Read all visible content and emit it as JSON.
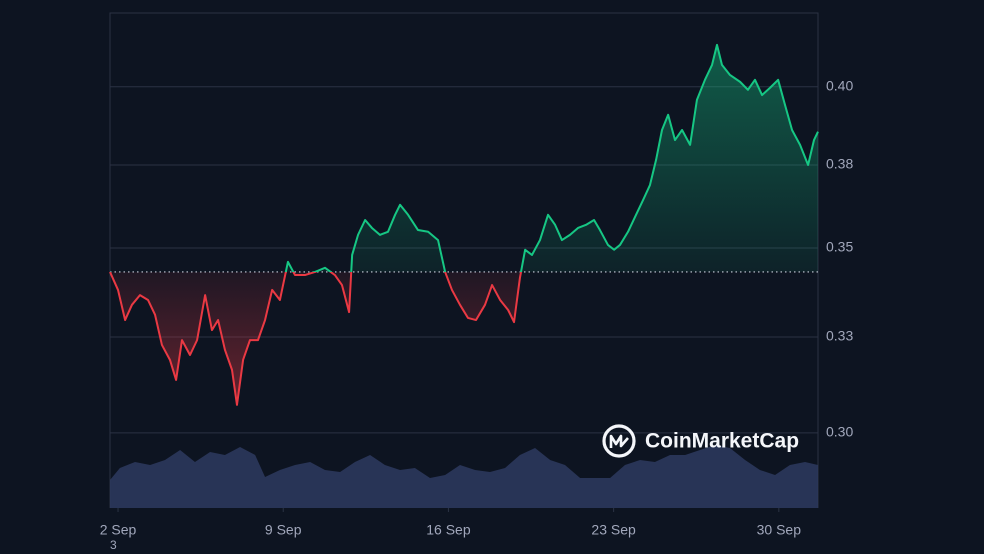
{
  "chart_data": {
    "type": "baseline-line",
    "x": [
      1.66,
      2.0,
      2.3,
      2.59,
      2.93,
      3.27,
      3.57,
      3.86,
      4.2,
      4.46,
      4.71,
      5.05,
      5.35,
      5.69,
      5.98,
      6.24,
      6.53,
      6.83,
      7.04,
      7.3,
      7.59,
      7.93,
      8.23,
      8.53,
      8.86,
      9.2,
      9.5,
      9.92,
      10.35,
      10.77,
      11.19,
      11.49,
      11.79,
      11.92,
      12.17,
      12.47,
      12.76,
      13.1,
      13.44,
      13.74,
      13.95,
      14.29,
      14.71,
      15.14,
      15.56,
      15.86,
      16.15,
      16.49,
      16.83,
      17.17,
      17.55,
      17.85,
      18.19,
      18.53,
      18.78,
      19.03,
      19.25,
      19.54,
      19.88,
      20.22,
      20.52,
      20.81,
      21.15,
      21.49,
      21.83,
      22.17,
      22.42,
      22.76,
      23.02,
      23.27,
      23.61,
      23.95,
      24.25,
      24.54,
      24.8,
      25.05,
      25.31,
      25.6,
      25.9,
      26.24,
      26.53,
      26.87,
      27.17,
      27.38,
      27.59,
      27.93,
      28.36,
      28.69,
      28.99,
      29.29,
      29.63,
      29.97,
      30.26,
      30.56,
      30.9,
      31.24,
      31.49,
      31.66
    ],
    "values": [
      0.3465,
      0.3413,
      0.3326,
      0.337,
      0.3398,
      0.3384,
      0.3341,
      0.3254,
      0.3211,
      0.3153,
      0.3268,
      0.3225,
      0.3268,
      0.3398,
      0.3297,
      0.3326,
      0.324,
      0.3182,
      0.3081,
      0.3211,
      0.3268,
      0.3268,
      0.3326,
      0.3413,
      0.3384,
      0.3494,
      0.3456,
      0.3456,
      0.3465,
      0.3477,
      0.3456,
      0.3427,
      0.3349,
      0.3514,
      0.3572,
      0.3615,
      0.3592,
      0.3572,
      0.3581,
      0.363,
      0.3659,
      0.363,
      0.3586,
      0.3581,
      0.3557,
      0.3465,
      0.3413,
      0.337,
      0.3332,
      0.3326,
      0.337,
      0.3427,
      0.3384,
      0.3355,
      0.332,
      0.3448,
      0.3529,
      0.3514,
      0.3557,
      0.363,
      0.3601,
      0.3557,
      0.3572,
      0.3592,
      0.3601,
      0.3615,
      0.3586,
      0.3543,
      0.3529,
      0.3543,
      0.3581,
      0.363,
      0.3673,
      0.3716,
      0.3789,
      0.3875,
      0.3919,
      0.3846,
      0.3875,
      0.3832,
      0.3962,
      0.402,
      0.4063,
      0.4121,
      0.4063,
      0.4034,
      0.4014,
      0.3991,
      0.402,
      0.3976,
      0.3997,
      0.402,
      0.3948,
      0.3875,
      0.3832,
      0.3774,
      0.3846,
      0.387
    ],
    "baseline": 0.3465,
    "color_up": "#16c784",
    "color_down": "#ea3943",
    "xlim": [
      1.66,
      31.66
    ],
    "xticks": [
      {
        "value": 2,
        "label": "2 Sep"
      },
      {
        "value": 9,
        "label": "9 Sep"
      },
      {
        "value": 16,
        "label": "16 Sep"
      },
      {
        "value": 23,
        "label": "23 Sep"
      },
      {
        "value": 30,
        "label": "30 Sep"
      }
    ],
    "ylim": [
      0.2783,
      0.4213
    ],
    "yticks": [
      {
        "value": 0.4,
        "label": "0.40"
      },
      {
        "value": 0.3774,
        "label": "0.38"
      },
      {
        "value": 0.3534,
        "label": "0.35"
      },
      {
        "value": 0.3277,
        "label": "0.33"
      },
      {
        "value": 0.3,
        "label": "0.30"
      }
    ],
    "grid": true,
    "volume": {
      "x": [
        1.66,
        2.08,
        2.72,
        3.36,
        3.99,
        4.63,
        5.26,
        5.9,
        6.53,
        7.17,
        7.81,
        8.23,
        8.86,
        9.5,
        10.14,
        10.77,
        11.41,
        12.04,
        12.68,
        13.31,
        13.95,
        14.58,
        15.22,
        15.86,
        16.49,
        17.13,
        17.76,
        18.4,
        19.03,
        19.67,
        20.31,
        20.94,
        21.58,
        22.21,
        22.85,
        23.48,
        24.12,
        24.75,
        25.39,
        26.03,
        26.66,
        27.3,
        27.93,
        28.57,
        29.2,
        29.84,
        30.47,
        31.11,
        31.66
      ],
      "values": [
        28,
        40,
        46,
        43,
        48,
        58,
        46,
        56,
        53,
        61,
        53,
        31,
        38,
        43,
        46,
        38,
        36,
        46,
        53,
        43,
        38,
        40,
        30,
        33,
        43,
        38,
        36,
        40,
        53,
        60,
        48,
        43,
        30,
        30,
        30,
        43,
        48,
        46,
        53,
        53,
        58,
        63,
        60,
        48,
        38,
        33,
        43,
        46,
        43
      ],
      "vlim": [
        0,
        100
      ],
      "color": "#2e3a5f"
    },
    "watermark": "CoinMarketCap",
    "x_axis_note": "3"
  }
}
